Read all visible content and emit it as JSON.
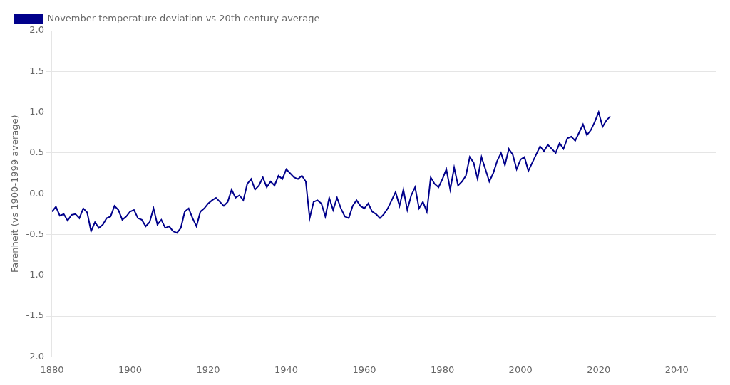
{
  "chart_data": {
    "type": "line",
    "ylabel": "Farenheit (vs 1900-1999 average)",
    "x": [
      1880,
      1881,
      1882,
      1883,
      1884,
      1885,
      1886,
      1887,
      1888,
      1889,
      1890,
      1891,
      1892,
      1893,
      1894,
      1895,
      1896,
      1897,
      1898,
      1899,
      1900,
      1901,
      1902,
      1903,
      1904,
      1905,
      1906,
      1907,
      1908,
      1909,
      1910,
      1911,
      1912,
      1913,
      1914,
      1915,
      1916,
      1917,
      1918,
      1919,
      1920,
      1921,
      1922,
      1923,
      1924,
      1925,
      1926,
      1927,
      1928,
      1929,
      1930,
      1931,
      1932,
      1933,
      1934,
      1935,
      1936,
      1937,
      1938,
      1939,
      1940,
      1941,
      1942,
      1943,
      1944,
      1945,
      1946,
      1947,
      1948,
      1949,
      1950,
      1951,
      1952,
      1953,
      1954,
      1955,
      1956,
      1957,
      1958,
      1959,
      1960,
      1961,
      1962,
      1963,
      1964,
      1965,
      1966,
      1967,
      1968,
      1969,
      1970,
      1971,
      1972,
      1973,
      1974,
      1975,
      1976,
      1977,
      1978,
      1979,
      1980,
      1981,
      1982,
      1983,
      1984,
      1985,
      1986,
      1987,
      1988,
      1989,
      1990,
      1991,
      1992,
      1993,
      1994,
      1995,
      1996,
      1997,
      1998,
      1999,
      2000,
      2001,
      2002,
      2003,
      2004,
      2005,
      2006,
      2007,
      2008,
      2009,
      2010,
      2011,
      2012,
      2013,
      2014,
      2015,
      2016,
      2017,
      2018,
      2019,
      2020,
      2021,
      2022,
      2023
    ],
    "series": [
      {
        "name": "November temperature deviation vs 20th century average",
        "color": "#00008B",
        "values": [
          -0.22,
          -0.16,
          -0.27,
          -0.25,
          -0.33,
          -0.26,
          -0.25,
          -0.3,
          -0.18,
          -0.23,
          -0.46,
          -0.35,
          -0.42,
          -0.38,
          -0.3,
          -0.28,
          -0.15,
          -0.2,
          -0.32,
          -0.28,
          -0.22,
          -0.2,
          -0.3,
          -0.32,
          -0.4,
          -0.35,
          -0.18,
          -0.38,
          -0.32,
          -0.42,
          -0.4,
          -0.46,
          -0.48,
          -0.42,
          -0.22,
          -0.18,
          -0.3,
          -0.4,
          -0.22,
          -0.18,
          -0.12,
          -0.08,
          -0.05,
          -0.1,
          -0.15,
          -0.1,
          0.05,
          -0.05,
          -0.02,
          -0.08,
          0.12,
          0.18,
          0.05,
          0.1,
          0.2,
          0.08,
          0.15,
          0.1,
          0.22,
          0.18,
          0.3,
          0.25,
          0.2,
          0.18,
          0.22,
          0.15,
          -0.3,
          -0.1,
          -0.08,
          -0.12,
          -0.28,
          -0.05,
          -0.2,
          -0.05,
          -0.18,
          -0.28,
          -0.3,
          -0.15,
          -0.08,
          -0.15,
          -0.18,
          -0.12,
          -0.22,
          -0.25,
          -0.3,
          -0.25,
          -0.18,
          -0.08,
          0.02,
          -0.15,
          0.05,
          -0.2,
          -0.02,
          0.08,
          -0.18,
          -0.1,
          -0.22,
          0.2,
          0.12,
          0.08,
          0.18,
          0.3,
          0.05,
          0.32,
          0.1,
          0.15,
          0.22,
          0.45,
          0.38,
          0.18,
          0.45,
          0.3,
          0.15,
          0.25,
          0.4,
          0.5,
          0.35,
          0.55,
          0.48,
          0.3,
          0.42,
          0.45,
          0.28,
          0.38,
          0.48,
          0.58,
          0.52,
          0.6,
          0.55,
          0.5,
          0.62,
          0.55,
          0.68,
          0.7,
          0.65,
          0.75,
          0.85,
          0.72,
          0.78,
          0.88,
          1.0,
          0.82,
          0.9,
          0.95
        ]
      }
    ],
    "xlim": [
      1880,
      2050
    ],
    "xticks": [
      1880,
      1900,
      1920,
      1940,
      1960,
      1980,
      2000,
      2020,
      2040
    ],
    "ylim": [
      -2.0,
      2.0
    ],
    "yticks": [
      {
        "value": -2,
        "label": "-2.0"
      },
      -1.5,
      {
        "value": -1,
        "label": "-1.0"
      },
      -0.5,
      {
        "value": 0,
        "label": "0.0"
      },
      0.5,
      {
        "value": 1,
        "label": "1.0"
      },
      1.5,
      {
        "value": 2,
        "label": "2.0"
      }
    ],
    "grid": "y",
    "legend": "upper left"
  }
}
